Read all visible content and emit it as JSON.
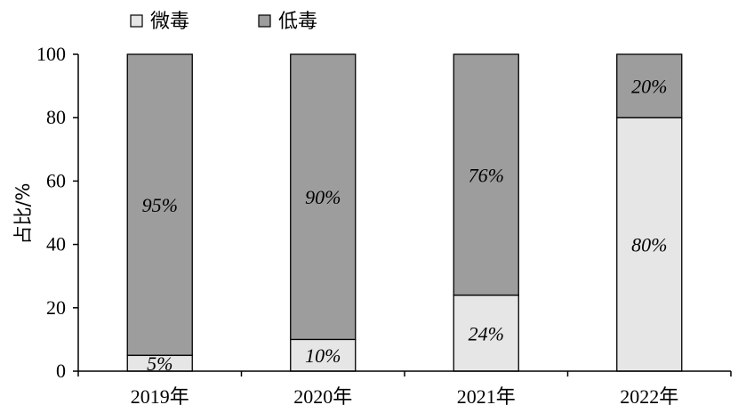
{
  "chart_data": {
    "type": "bar",
    "stacked": true,
    "categories": [
      "2019年",
      "2020年",
      "2021年",
      "2022年"
    ],
    "series": [
      {
        "name": "微毒",
        "values": [
          5,
          10,
          24,
          80
        ],
        "labels": [
          "5%",
          "10%",
          "24%",
          "80%"
        ],
        "color": "#e6e6e6"
      },
      {
        "name": "低毒",
        "values": [
          95,
          90,
          76,
          20
        ],
        "labels": [
          "95%",
          "90%",
          "76%",
          "20%"
        ],
        "color": "#9d9d9d"
      }
    ],
    "ylabel": "占比/%",
    "ylim": [
      0,
      100
    ],
    "yticks": [
      0,
      20,
      40,
      60,
      80,
      100
    ],
    "grid": false,
    "legend_position": "top-left"
  }
}
